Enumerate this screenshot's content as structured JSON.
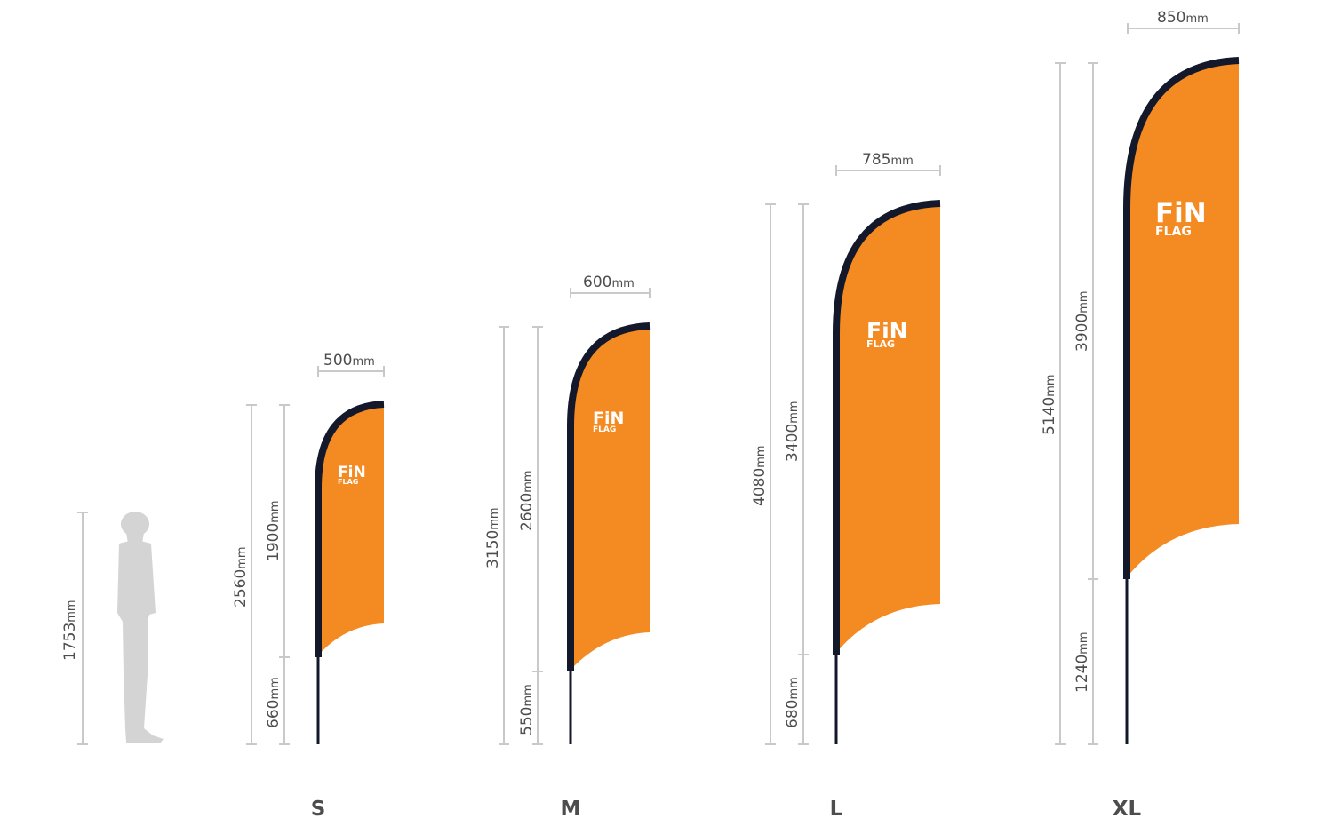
{
  "unit": "mm",
  "person": {
    "height": "1753"
  },
  "flags": [
    {
      "size": "S",
      "width": "500",
      "total_height": "2560",
      "flag_height": "1900",
      "pole_height": "660"
    },
    {
      "size": "M",
      "width": "600",
      "total_height": "3150",
      "flag_height": "2600",
      "pole_height": "550"
    },
    {
      "size": "L",
      "width": "785",
      "total_height": "4080",
      "flag_height": "3400",
      "pole_height": "680"
    },
    {
      "size": "XL",
      "width": "850",
      "total_height": "5140",
      "flag_height": "3900",
      "pole_height": "1240"
    }
  ],
  "logo": {
    "line1": "FiN",
    "line2": "FLAG"
  },
  "colors": {
    "fabric": "#f48a22",
    "edge": "#13192b",
    "dimension": "#c9c9c9",
    "text": "#4d4d4d",
    "person": "#d4d4d4"
  }
}
